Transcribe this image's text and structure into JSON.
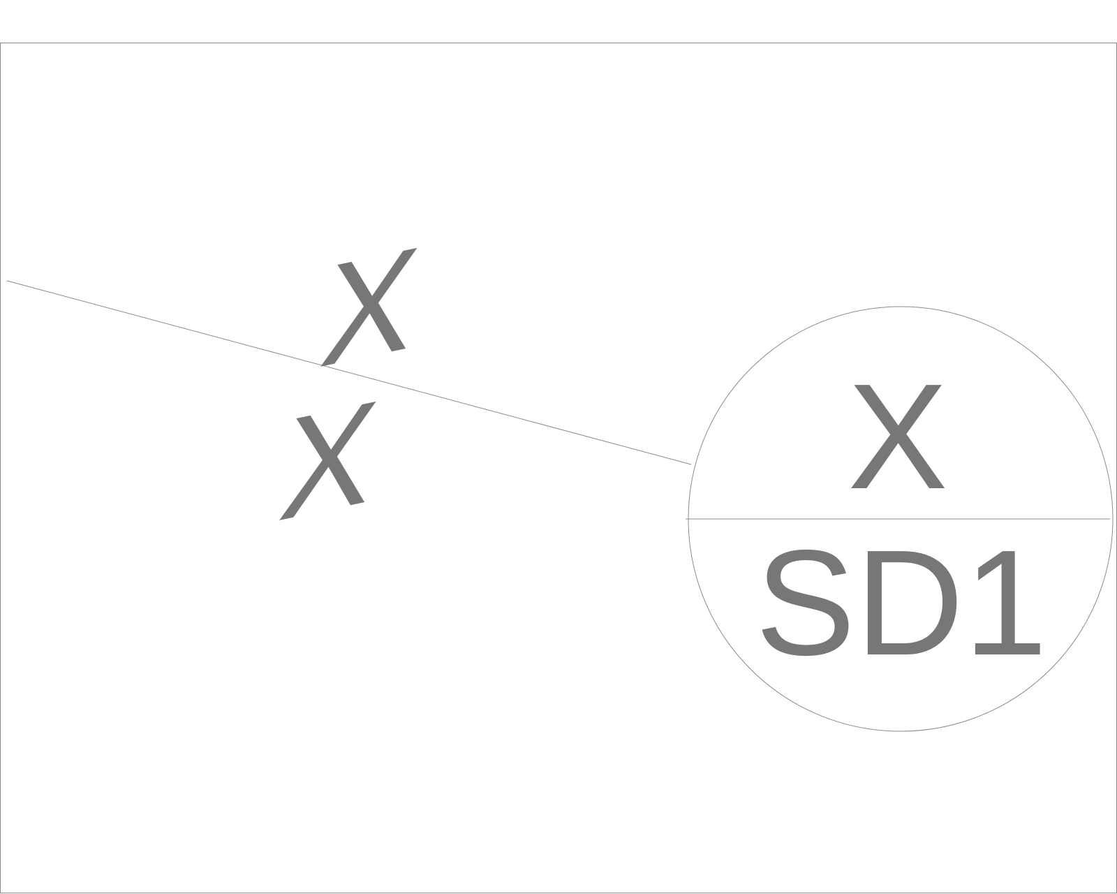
{
  "drawing": {
    "symbol_top_text": "X",
    "symbol_bottom_text": "SD1",
    "break_marks": [
      "X",
      "X"
    ],
    "colors": {
      "line": "#8a8a8a",
      "text": "#777777",
      "background": "#ffffff"
    }
  }
}
